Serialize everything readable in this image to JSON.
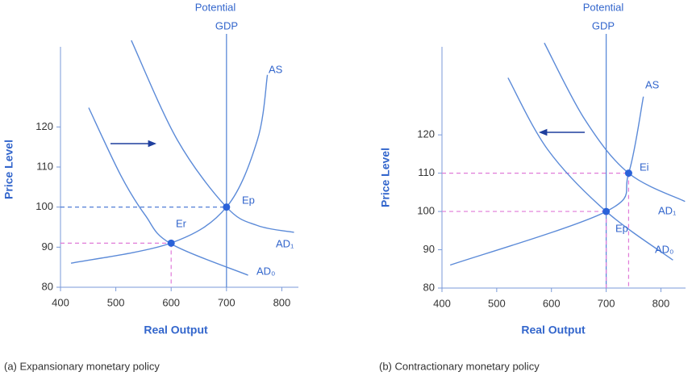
{
  "chart_data": [
    {
      "type": "line",
      "caption": "(a)  Expansionary monetary policy",
      "xlabel": "Real Output",
      "ylabel": "Price Level",
      "reference_line": {
        "x": 700,
        "label": [
          "Potential",
          "GDP"
        ]
      },
      "xlim": [
        400,
        830
      ],
      "ylim": [
        80,
        140
      ],
      "xticks": [
        400,
        500,
        600,
        700,
        800
      ],
      "yticks": [
        80,
        90,
        100,
        110,
        120
      ],
      "series": [
        {
          "name": "AS",
          "color": "#5b8ad8",
          "x": [
            419,
            599,
            700,
            756,
            774
          ],
          "values": [
            86,
            91,
            100,
            116.8,
            133
          ]
        },
        {
          "name": "AD₀",
          "color": "#5b8ad8",
          "x": [
            451,
            509,
            553,
            599,
            739
          ],
          "values": [
            124.8,
            107.9,
            98,
            90.9,
            83
          ]
        },
        {
          "name": "AD₁",
          "color": "#5b8ad8",
          "x": [
            528,
            611,
            700,
            756,
            822
          ],
          "values": [
            141.6,
            116.8,
            100,
            95.4,
            93.7
          ]
        }
      ],
      "points": [
        {
          "label": "Ep",
          "x": 700,
          "y": 100,
          "guide_color": "#3d6fd1"
        },
        {
          "label": "Er",
          "x": 600,
          "y": 91,
          "guide_color": "#e07ad8"
        }
      ]
    },
    {
      "type": "line",
      "caption": "(b) Contractionary monetary policy",
      "xlabel": "Real Output",
      "ylabel": "Price Level",
      "reference_line": {
        "x": 700,
        "label": [
          "Potential",
          "GDP"
        ]
      },
      "xlim": [
        400,
        845
      ],
      "ylim": [
        80,
        143
      ],
      "xticks": [
        400,
        500,
        600,
        700,
        800
      ],
      "yticks": [
        80,
        90,
        100,
        110,
        120
      ],
      "series": [
        {
          "name": "AS",
          "color": "#5b8ad8",
          "x": [
            415,
            700,
            741,
            768
          ],
          "values": [
            86,
            100,
            110,
            130
          ]
        },
        {
          "name": "AD₀",
          "color": "#5b8ad8",
          "x": [
            520.6,
            594,
            700,
            822
          ],
          "values": [
            134.9,
            116,
            100,
            87.3
          ]
        },
        {
          "name": "AD₁",
          "color": "#5b8ad8",
          "x": [
            587,
            661,
            741,
            844
          ],
          "values": [
            144,
            124,
            110,
            102.6
          ]
        }
      ],
      "points": [
        {
          "label": "Ep",
          "x": 700,
          "y": 100,
          "guide_color": "#e07ad8"
        },
        {
          "label": "Ei",
          "x": 741,
          "y": 110,
          "guide_color": "#e07ad8"
        }
      ]
    }
  ]
}
